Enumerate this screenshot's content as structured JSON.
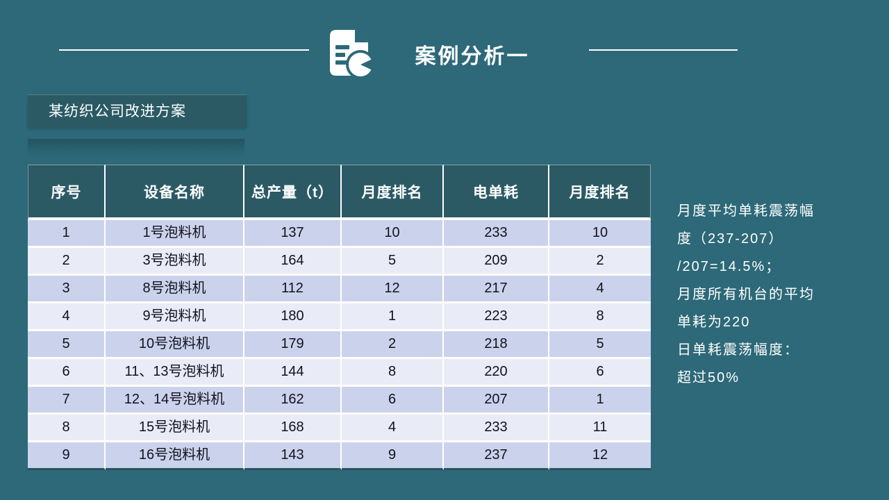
{
  "slide": {
    "title": "案例分析一",
    "subtitle": "某纺织公司改进方案"
  },
  "table": {
    "columns": [
      "序号",
      "设备名称",
      "总产量（t）",
      "月度排名",
      "电单耗",
      "月度排名"
    ],
    "rows": [
      [
        "1",
        "1号泡料机",
        "137",
        "10",
        "233",
        "10"
      ],
      [
        "2",
        "3号泡料机",
        "164",
        "5",
        "209",
        "2"
      ],
      [
        "3",
        "8号泡料机",
        "112",
        "12",
        "217",
        "4"
      ],
      [
        "4",
        "9号泡料机",
        "180",
        "1",
        "223",
        "8"
      ],
      [
        "5",
        "10号泡料机",
        "179",
        "2",
        "218",
        "5"
      ],
      [
        "6",
        "11、13号泡料机",
        "144",
        "8",
        "220",
        "6"
      ],
      [
        "7",
        "12、14号泡料机",
        "162",
        "6",
        "207",
        "1"
      ],
      [
        "8",
        "15号泡料机",
        "168",
        "4",
        "233",
        "11"
      ],
      [
        "9",
        "16号泡料机",
        "143",
        "9",
        "237",
        "12"
      ]
    ]
  },
  "notes": {
    "lines": [
      "月度平均单耗震荡幅",
      "度（237-207）",
      "/207=14.5%；",
      "月度所有机台的平均",
      "单耗为220",
      "日单耗震荡幅度：",
      "超过50%"
    ]
  },
  "icons": {
    "title_icon": "document-chart-icon"
  },
  "colors": {
    "background": "#2D6978",
    "panel_teal": "#2B5A65",
    "row_odd": "#CBD2EC",
    "row_even": "#E9EBF6",
    "text_dark": "#12121E",
    "table_footer": "#265661",
    "white": "#FFFFFF"
  }
}
